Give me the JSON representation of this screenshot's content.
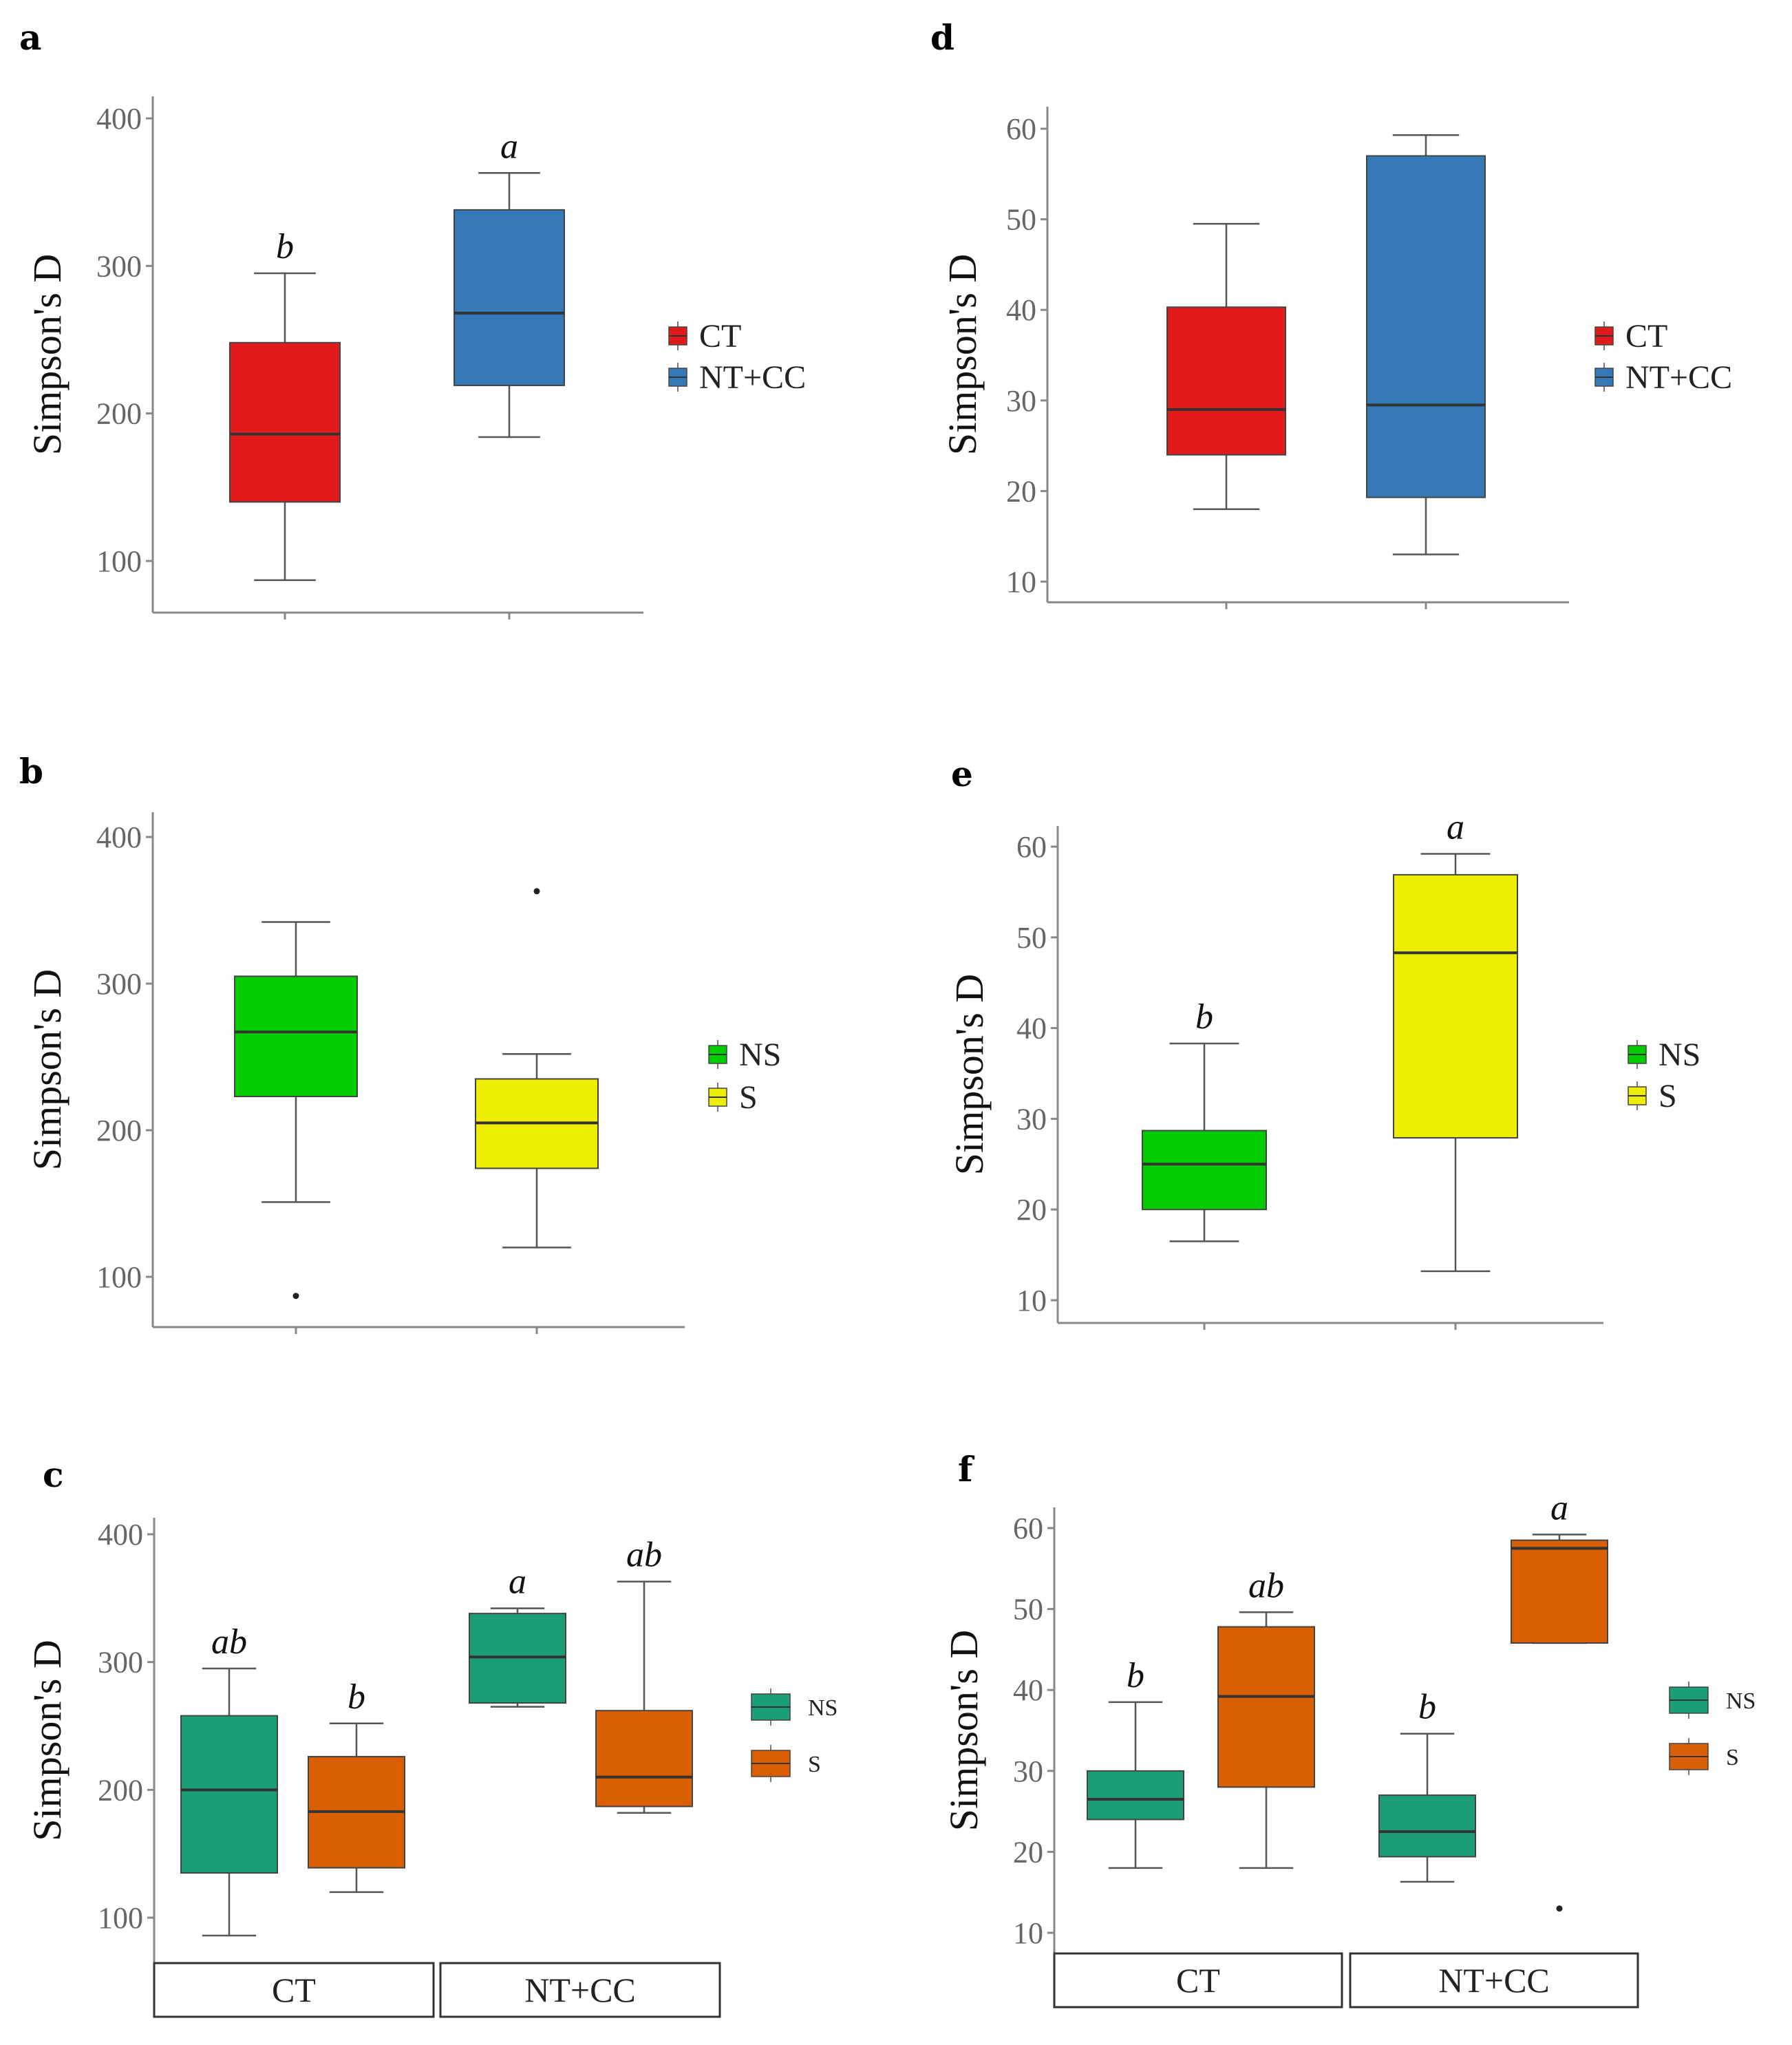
{
  "chart_data": [
    {
      "panel": "a",
      "type": "box",
      "ylabel": "Simpson's D",
      "ylim": [
        80,
        415
      ],
      "yticks": [
        100,
        200,
        300,
        400
      ],
      "legend": [
        {
          "label": "CT",
          "color": "#E31A1C"
        },
        {
          "label": "NT+CC",
          "color": "#3379B8"
        }
      ],
      "boxes": [
        {
          "group": "CT",
          "color": "#E31A1C",
          "min": 87,
          "q1": 140,
          "median": 186,
          "q3": 248,
          "max": 295,
          "sig": "b",
          "outliers": []
        },
        {
          "group": "NT+CC",
          "color": "#3379B8",
          "min": 184,
          "q1": 219,
          "median": 268,
          "q3": 338,
          "max": 363,
          "sig": "a",
          "outliers": []
        }
      ]
    },
    {
      "panel": "d",
      "type": "box",
      "ylabel": "Simpson's D",
      "ylim": [
        8,
        62
      ],
      "yticks": [
        10,
        20,
        30,
        40,
        50,
        60
      ],
      "legend": [
        {
          "label": "CT",
          "color": "#E31A1C"
        },
        {
          "label": "NT+CC",
          "color": "#3379B8"
        }
      ],
      "boxes": [
        {
          "group": "CT",
          "color": "#E31A1C",
          "min": 18,
          "q1": 24,
          "median": 29,
          "q3": 40.3,
          "max": 49.5,
          "sig": "",
          "outliers": []
        },
        {
          "group": "NT+CC",
          "color": "#3379B8",
          "min": 13,
          "q1": 19.3,
          "median": 29.5,
          "q3": 57,
          "max": 59.3,
          "sig": "",
          "outliers": []
        }
      ]
    },
    {
      "panel": "b",
      "type": "box",
      "ylabel": "Simpson's D",
      "ylim": [
        65,
        415
      ],
      "yticks": [
        100,
        200,
        300,
        400
      ],
      "legend": [
        {
          "label": "NS",
          "color": "#00CC00"
        },
        {
          "label": "S",
          "color": "#EEEE00"
        }
      ],
      "boxes": [
        {
          "group": "NS",
          "color": "#00CC00",
          "min": 151,
          "q1": 223,
          "median": 267,
          "q3": 305,
          "max": 342,
          "sig": "",
          "outliers": [
            87
          ]
        },
        {
          "group": "S",
          "color": "#EEEE00",
          "min": 120,
          "q1": 174,
          "median": 205,
          "q3": 235,
          "max": 252,
          "sig": "",
          "outliers": [
            363
          ]
        }
      ]
    },
    {
      "panel": "e",
      "type": "box",
      "ylabel": "Simpson's D",
      "ylim": [
        7.5,
        62
      ],
      "yticks": [
        10,
        20,
        30,
        40,
        50,
        60
      ],
      "legend": [
        {
          "label": "NS",
          "color": "#00CC00"
        },
        {
          "label": "S",
          "color": "#EEEE00"
        }
      ],
      "boxes": [
        {
          "group": "NS",
          "color": "#00CC00",
          "min": 16.5,
          "q1": 20,
          "median": 25,
          "q3": 28.7,
          "max": 38.3,
          "sig": "b",
          "outliers": []
        },
        {
          "group": "S",
          "color": "#EEEE00",
          "min": 13.2,
          "q1": 27.9,
          "median": 48.3,
          "q3": 56.9,
          "max": 59.2,
          "sig": "a",
          "outliers": []
        }
      ]
    },
    {
      "panel": "c",
      "type": "box",
      "ylabel": "Simpson's D",
      "ylim": [
        72,
        415
      ],
      "yticks": [
        100,
        200,
        300,
        400
      ],
      "facets": [
        "CT",
        "NT+CC"
      ],
      "legend": [
        {
          "label": "NS",
          "color": "#1B9E77"
        },
        {
          "label": "S",
          "color": "#D95F02"
        }
      ],
      "boxes": [
        {
          "facet": "CT",
          "group": "NS",
          "color": "#1B9E77",
          "min": 86,
          "q1": 135,
          "median": 200,
          "q3": 258,
          "max": 295,
          "sig": "ab",
          "outliers": []
        },
        {
          "facet": "CT",
          "group": "S",
          "color": "#D95F02",
          "min": 120,
          "q1": 139,
          "median": 183,
          "q3": 226,
          "max": 252,
          "sig": "b",
          "outliers": []
        },
        {
          "facet": "NT+CC",
          "group": "NS",
          "color": "#1B9E77",
          "min": 265,
          "q1": 268,
          "median": 304,
          "q3": 338,
          "max": 342,
          "sig": "a",
          "outliers": []
        },
        {
          "facet": "NT+CC",
          "group": "S",
          "color": "#D95F02",
          "min": 182,
          "q1": 187,
          "median": 210,
          "q3": 262,
          "max": 363,
          "sig": "ab",
          "outliers": []
        }
      ]
    },
    {
      "panel": "f",
      "type": "box",
      "ylabel": "Simpson's D",
      "ylim": [
        7.5,
        62
      ],
      "yticks": [
        10,
        20,
        30,
        40,
        50,
        60
      ],
      "facets": [
        "CT",
        "NT+CC"
      ],
      "legend": [
        {
          "label": "NS",
          "color": "#1B9E77"
        },
        {
          "label": "S",
          "color": "#D95F02"
        }
      ],
      "boxes": [
        {
          "facet": "CT",
          "group": "NS",
          "color": "#1B9E77",
          "min": 18,
          "q1": 24,
          "median": 26.5,
          "q3": 30,
          "max": 38.5,
          "sig": "b",
          "outliers": []
        },
        {
          "facet": "CT",
          "group": "S",
          "color": "#D95F02",
          "min": 18,
          "q1": 28,
          "median": 39.2,
          "q3": 47.8,
          "max": 49.6,
          "sig": "ab",
          "outliers": []
        },
        {
          "facet": "NT+CC",
          "group": "NS",
          "color": "#1B9E77",
          "min": 16.3,
          "q1": 19.4,
          "median": 22.5,
          "q3": 27,
          "max": 34.6,
          "sig": "b",
          "outliers": []
        },
        {
          "facet": "NT+CC",
          "group": "S",
          "color": "#D95F02",
          "min": 45.8,
          "q1": 45.8,
          "median": 57.5,
          "q3": 58.5,
          "max": 59.2,
          "sig": "a",
          "outliers": [
            13
          ]
        }
      ]
    }
  ]
}
